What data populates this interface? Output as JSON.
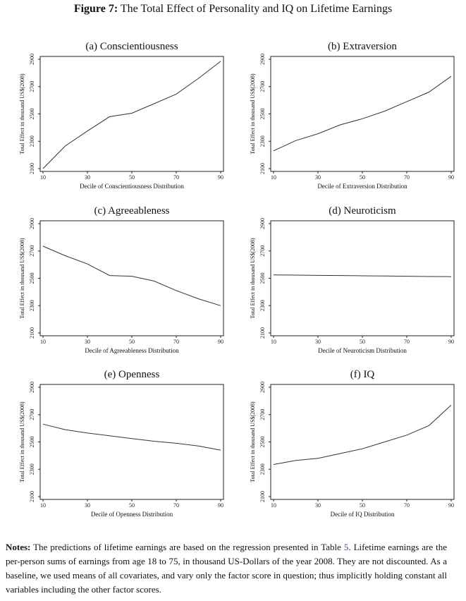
{
  "figure": {
    "label": "Figure 7:",
    "title": "The Total Effect of Personality and IQ on Lifetime Earnings"
  },
  "notes": {
    "label": "Notes:",
    "text_before_link": "The predictions of lifetime earnings are based on the regression presented in Table",
    "link_text": "5",
    "text_after_link": ". Lifetime earnings are the per-person sums of earnings from age 18 to 75, in thousand US-Dollars of the year 2008. They are not discounted. As a baseline, we used means of all covariates, and vary only the factor score in question; thus implicitly holding constant all variables including the other factor scores.",
    "link_color": "#2b4bb5"
  },
  "chart_data": [
    {
      "type": "line",
      "title": "(a) Conscientiousness",
      "xlabel": "Decile of Conscientiousness Distribution",
      "ylabel": "Total Effect in thousand US$(2008)",
      "xticks": [
        "10",
        "30",
        "50",
        "70",
        "90"
      ],
      "yticks": [
        "2100",
        "2300",
        "2500",
        "2700",
        "2900"
      ],
      "xlim": [
        10,
        90
      ],
      "ylim": [
        2100,
        2900
      ],
      "x": [
        10,
        20,
        30,
        40,
        50,
        60,
        70,
        80,
        90
      ],
      "y": [
        2100,
        2265,
        2375,
        2480,
        2505,
        2575,
        2645,
        2760,
        2885
      ]
    },
    {
      "type": "line",
      "title": "(b) Extraversion",
      "xlabel": "Decile of Extraversion Distribution",
      "ylabel": "Total Effect in thousand US$(2008)",
      "xticks": [
        "10",
        "30",
        "50",
        "70",
        "90"
      ],
      "yticks": [
        "2100",
        "2300",
        "2500",
        "2700",
        "2900"
      ],
      "xlim": [
        10,
        90
      ],
      "ylim": [
        2100,
        2900
      ],
      "x": [
        10,
        20,
        30,
        40,
        50,
        60,
        70,
        80,
        90
      ],
      "y": [
        2230,
        2305,
        2355,
        2420,
        2465,
        2520,
        2590,
        2660,
        2775
      ]
    },
    {
      "type": "line",
      "title": "(c) Agreeableness",
      "xlabel": "Decile of Agreeableness Distribution",
      "ylabel": "Total Effect in thousand US$(2008)",
      "xticks": [
        "10",
        "30",
        "50",
        "70",
        "90"
      ],
      "yticks": [
        "2100",
        "2300",
        "2500",
        "2700",
        "2900"
      ],
      "xlim": [
        10,
        90
      ],
      "ylim": [
        2100,
        2900
      ],
      "x": [
        10,
        20,
        30,
        40,
        50,
        60,
        70,
        80,
        90
      ],
      "y": [
        2735,
        2665,
        2605,
        2520,
        2515,
        2480,
        2410,
        2350,
        2300
      ]
    },
    {
      "type": "line",
      "title": "(d) Neuroticism",
      "xlabel": "Decile of Neuroticism Distribution",
      "ylabel": "Total Effect in thousand US$(2008)",
      "xticks": [
        "10",
        "30",
        "50",
        "70",
        "90"
      ],
      "yticks": [
        "2100",
        "2300",
        "2500",
        "2700",
        "2900"
      ],
      "xlim": [
        10,
        90
      ],
      "ylim": [
        2100,
        2900
      ],
      "x": [
        10,
        20,
        30,
        40,
        50,
        60,
        70,
        80,
        90
      ],
      "y": [
        2525,
        2523,
        2521,
        2520,
        2518,
        2517,
        2515,
        2513,
        2512
      ]
    },
    {
      "type": "line",
      "title": "(e) Openness",
      "xlabel": "Decile of Openness Distribution",
      "ylabel": "Total Effect in thousand US$(2008)",
      "xticks": [
        "10",
        "30",
        "50",
        "70",
        "90"
      ],
      "yticks": [
        "2100",
        "2300",
        "2500",
        "2700",
        "2900"
      ],
      "xlim": [
        10,
        90
      ],
      "ylim": [
        2100,
        2900
      ],
      "x": [
        10,
        20,
        30,
        40,
        50,
        60,
        70,
        80,
        90
      ],
      "y": [
        2630,
        2590,
        2565,
        2545,
        2525,
        2505,
        2490,
        2470,
        2440
      ]
    },
    {
      "type": "line",
      "title": "(f) IQ",
      "xlabel": "Decile of IQ Distribution",
      "ylabel": "Total Effect in thousand US$(2008)",
      "xticks": [
        "10",
        "30",
        "50",
        "70",
        "90"
      ],
      "yticks": [
        "2100",
        "2300",
        "2500",
        "2700",
        "2900"
      ],
      "xlim": [
        10,
        90
      ],
      "ylim": [
        2100,
        2900
      ],
      "x": [
        10,
        20,
        30,
        40,
        50,
        60,
        70,
        80,
        90
      ],
      "y": [
        2335,
        2365,
        2380,
        2415,
        2450,
        2500,
        2550,
        2620,
        2770
      ]
    }
  ]
}
